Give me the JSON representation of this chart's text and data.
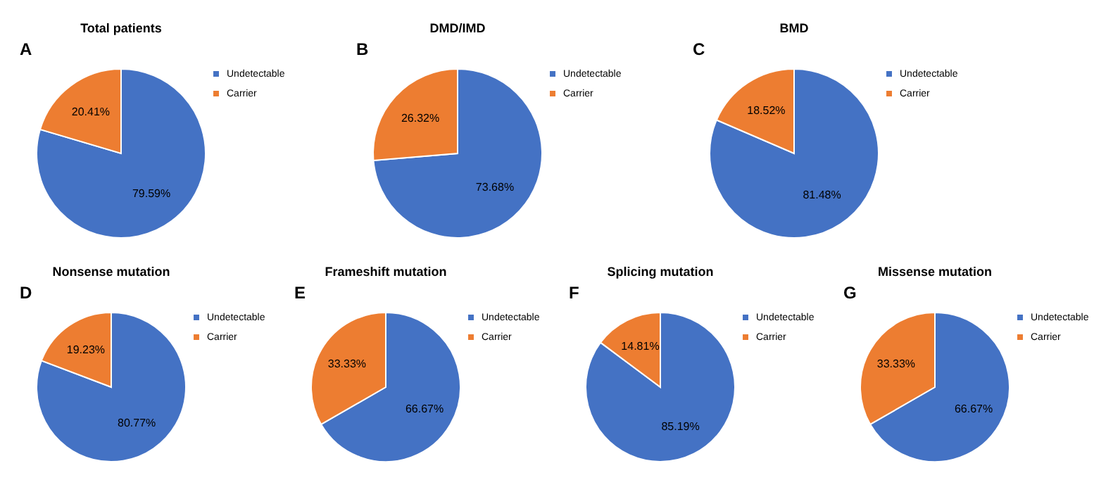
{
  "chart_data": [
    {
      "type": "pie",
      "title": "Total patients",
      "annotations": [
        "A"
      ],
      "categories": [
        "Undetectable",
        "Carrier"
      ],
      "values": [
        79.59,
        20.41
      ],
      "colors": [
        "#4472c4",
        "#ed7d31"
      ],
      "value_labels": [
        "79.59%",
        "20.41%"
      ],
      "legend": "top right"
    },
    {
      "type": "pie",
      "title": "DMD/IMD",
      "annotations": [
        "B"
      ],
      "categories": [
        "Undetectable",
        "Carrier"
      ],
      "values": [
        73.68,
        26.32
      ],
      "colors": [
        "#4472c4",
        "#ed7d31"
      ],
      "value_labels": [
        "73.68%",
        "26.32%"
      ],
      "legend": "top right"
    },
    {
      "type": "pie",
      "title": "BMD",
      "annotations": [
        "C"
      ],
      "categories": [
        "Undetectable",
        "Carrier"
      ],
      "values": [
        81.48,
        18.52
      ],
      "colors": [
        "#4472c4",
        "#ed7d31"
      ],
      "value_labels": [
        "81.48%",
        "18.52%"
      ],
      "legend": "top right"
    },
    {
      "type": "pie",
      "title": "Nonsense mutation",
      "annotations": [
        "D"
      ],
      "categories": [
        "Undetectable",
        "Carrier"
      ],
      "values": [
        80.77,
        19.23
      ],
      "colors": [
        "#4472c4",
        "#ed7d31"
      ],
      "value_labels": [
        "80.77%",
        "19.23%"
      ],
      "legend": "top right"
    },
    {
      "type": "pie",
      "title": "Frameshift mutation",
      "annotations": [
        "E"
      ],
      "categories": [
        "Undetectable",
        "Carrier"
      ],
      "values": [
        66.67,
        33.33
      ],
      "colors": [
        "#4472c4",
        "#ed7d31"
      ],
      "value_labels": [
        "66.67%",
        "33.33%"
      ],
      "legend": "top right"
    },
    {
      "type": "pie",
      "title": "Splicing mutation",
      "annotations": [
        "F"
      ],
      "categories": [
        "Undetectable",
        "Carrier"
      ],
      "values": [
        85.19,
        14.81
      ],
      "colors": [
        "#4472c4",
        "#ed7d31"
      ],
      "value_labels": [
        "85.19%",
        "14.81%"
      ],
      "legend": "top right"
    },
    {
      "type": "pie",
      "title": "Missense mutation",
      "annotations": [
        "G"
      ],
      "categories": [
        "Undetectable",
        "Carrier"
      ],
      "values": [
        66.67,
        33.33
      ],
      "colors": [
        "#4472c4",
        "#ed7d31"
      ],
      "value_labels": [
        "66.67%",
        "33.33%"
      ],
      "legend": "top right"
    }
  ]
}
